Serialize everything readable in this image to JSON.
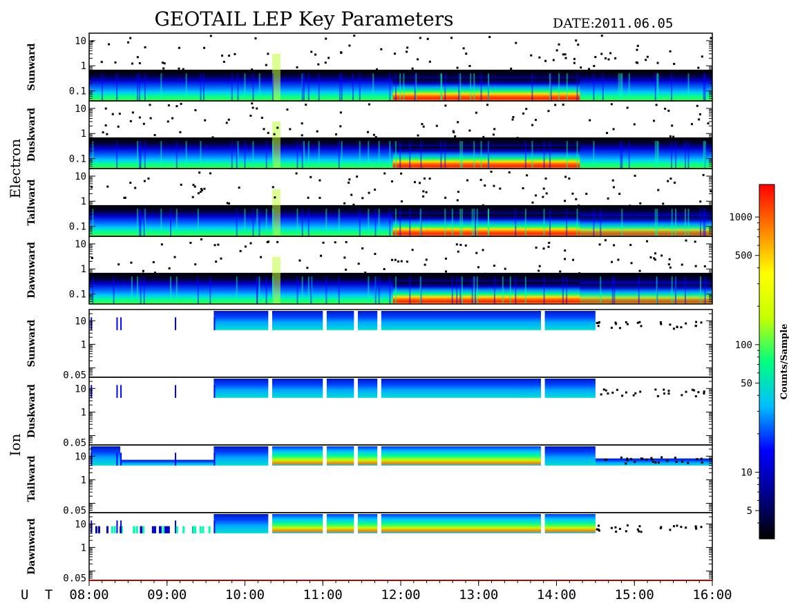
{
  "chart_data": {
    "type": "heatmap",
    "title": "GEOTAIL LEP Key Parameters",
    "date_label": "DATE:",
    "date_value": "2011.06.05",
    "x_axis_label": "U T",
    "x_ticks": [
      "08:00",
      "09:00",
      "10:00",
      "11:00",
      "12:00",
      "13:00",
      "14:00",
      "15:00",
      "16:00"
    ],
    "x_range_hours": [
      8,
      16
    ],
    "y_scale": "log",
    "groups": [
      {
        "name": "Electron",
        "y_ticks": [
          "10",
          "1",
          "0.1"
        ],
        "y_range": [
          0.04,
          20
        ],
        "panels": [
          {
            "direction": "Sunward"
          },
          {
            "direction": "Duskward"
          },
          {
            "direction": "Tailward"
          },
          {
            "direction": "Dawnward"
          }
        ]
      },
      {
        "name": "Ion",
        "y_ticks": [
          "10",
          "1",
          "0.05"
        ],
        "y_range": [
          0.04,
          30
        ],
        "panels": [
          {
            "direction": "Sunward"
          },
          {
            "direction": "Duskward"
          },
          {
            "direction": "Tailward"
          },
          {
            "direction": "Dawnward"
          }
        ]
      }
    ],
    "colorbar": {
      "label": "Counts/Sample",
      "scale": "log",
      "ticks": [
        "1000",
        "500",
        "100",
        "50",
        "10",
        "5"
      ],
      "tick_values": [
        1000,
        500,
        100,
        50,
        10,
        5
      ],
      "range": [
        3,
        1800
      ],
      "colors": [
        "#000000",
        "#00008b",
        "#0000ff",
        "#00bfff",
        "#00ff7f",
        "#c8ff00",
        "#ffff00",
        "#ff8000",
        "#ff0000"
      ]
    }
  }
}
